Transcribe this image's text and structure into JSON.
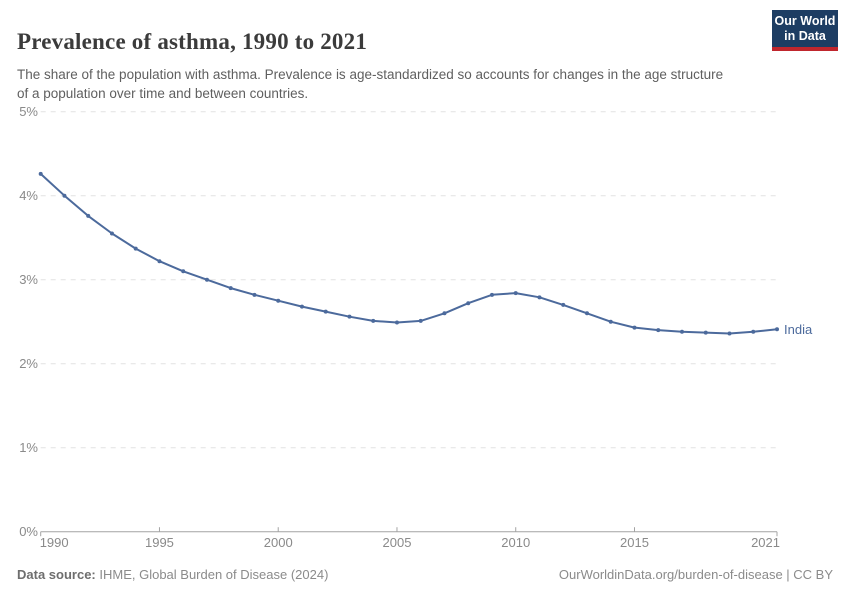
{
  "header": {
    "title": "Prevalence of asthma, 1990 to 2021",
    "subtitle": "The share of the population with asthma. Prevalence is age-standardized so accounts for changes in the age structure of a population over time and between countries.",
    "logo_line1": "Our World",
    "logo_line2": "in Data"
  },
  "chart_data": {
    "type": "line",
    "title": "Prevalence of asthma, 1990 to 2021",
    "xlabel": "",
    "ylabel": "",
    "xlim": [
      1990,
      2021
    ],
    "ylim": [
      0,
      5
    ],
    "x_ticks": [
      1990,
      1995,
      2000,
      2005,
      2010,
      2015,
      2021
    ],
    "y_ticks": [
      0,
      1,
      2,
      3,
      4,
      5
    ],
    "y_tick_suffix": "%",
    "grid": "horizontal-dashed",
    "legend_position": "end-of-line-label",
    "series": [
      {
        "name": "India",
        "color": "#4c6a9c",
        "x": [
          1990,
          1991,
          1992,
          1993,
          1994,
          1995,
          1996,
          1997,
          1998,
          1999,
          2000,
          2001,
          2002,
          2003,
          2004,
          2005,
          2006,
          2007,
          2008,
          2009,
          2010,
          2011,
          2012,
          2013,
          2014,
          2015,
          2016,
          2017,
          2018,
          2019,
          2020,
          2021
        ],
        "values": [
          4.26,
          4.0,
          3.76,
          3.55,
          3.37,
          3.22,
          3.1,
          3.0,
          2.9,
          2.82,
          2.75,
          2.68,
          2.62,
          2.56,
          2.51,
          2.49,
          2.51,
          2.6,
          2.72,
          2.82,
          2.84,
          2.79,
          2.7,
          2.6,
          2.5,
          2.43,
          2.4,
          2.38,
          2.37,
          2.36,
          2.38,
          2.41
        ]
      }
    ]
  },
  "footer": {
    "source_label": "Data source:",
    "source_text": " IHME, Global Burden of Disease (2024)",
    "credit_text": "OurWorldinData.org/burden-of-disease | CC BY"
  },
  "colors": {
    "line": "#4c6a9c",
    "grid": "#e2e2e2",
    "axis": "#a3a3a3",
    "tick_label": "#8a8a8a",
    "logo_bg": "#1d3d63",
    "logo_stripe": "#c0262d"
  }
}
